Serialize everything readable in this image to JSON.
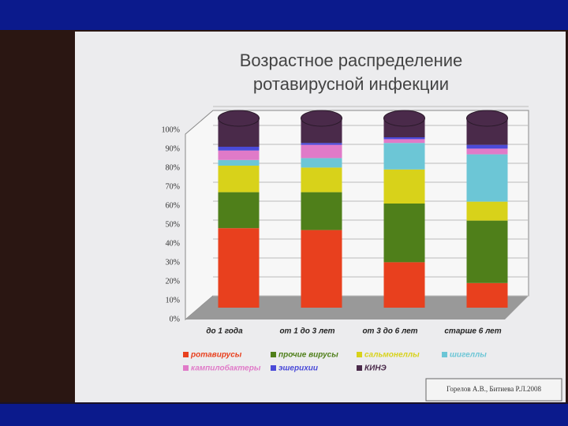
{
  "chart_data": {
    "type": "stacked-bar",
    "title": "Возрастное распределение ротавирусной инфекции",
    "source": "Горелов А.В., Битиева Р.Л.2008",
    "categories": [
      "до 1 года",
      "от 1 до 3 лет",
      "от 3 до 6 лет",
      "старше 6 лет"
    ],
    "series": [
      {
        "name": "ротавирусы",
        "color": "#e8401e",
        "values": [
          42,
          41,
          24,
          13
        ]
      },
      {
        "name": "прочие вирусы",
        "color": "#4f7f1a",
        "values": [
          19,
          20,
          31,
          33
        ]
      },
      {
        "name": "сальмонеллы",
        "color": "#d8d21a",
        "values": [
          14,
          13,
          18,
          10
        ]
      },
      {
        "name": "шигеллы",
        "color": "#6cc6d6",
        "values": [
          3,
          5,
          14,
          25
        ]
      },
      {
        "name": "кампилобактеры",
        "color": "#e07ac8",
        "values": [
          5,
          7,
          2,
          3
        ]
      },
      {
        "name": "эшерихии",
        "color": "#4a4ad8",
        "values": [
          2,
          1,
          1,
          2
        ]
      },
      {
        "name": "КИНЭ",
        "color": "#4a2a4a",
        "values": [
          15,
          13,
          10,
          14
        ]
      }
    ],
    "ylim": [
      0,
      100
    ],
    "yticks": [
      {
        "value": 0,
        "label": "0%"
      },
      {
        "value": 10,
        "label": "10%"
      },
      {
        "value": 20,
        "label": "20%"
      },
      {
        "value": 30,
        "label": "30%"
      },
      {
        "value": 40,
        "label": "40%"
      },
      {
        "value": 50,
        "label": "50%"
      },
      {
        "value": 60,
        "label": "60%"
      },
      {
        "value": 70,
        "label": "70%"
      },
      {
        "value": 80,
        "label": "80%"
      },
      {
        "value": 90,
        "label": "90%"
      },
      {
        "value": 100,
        "label": "100%"
      }
    ],
    "grid": true
  }
}
